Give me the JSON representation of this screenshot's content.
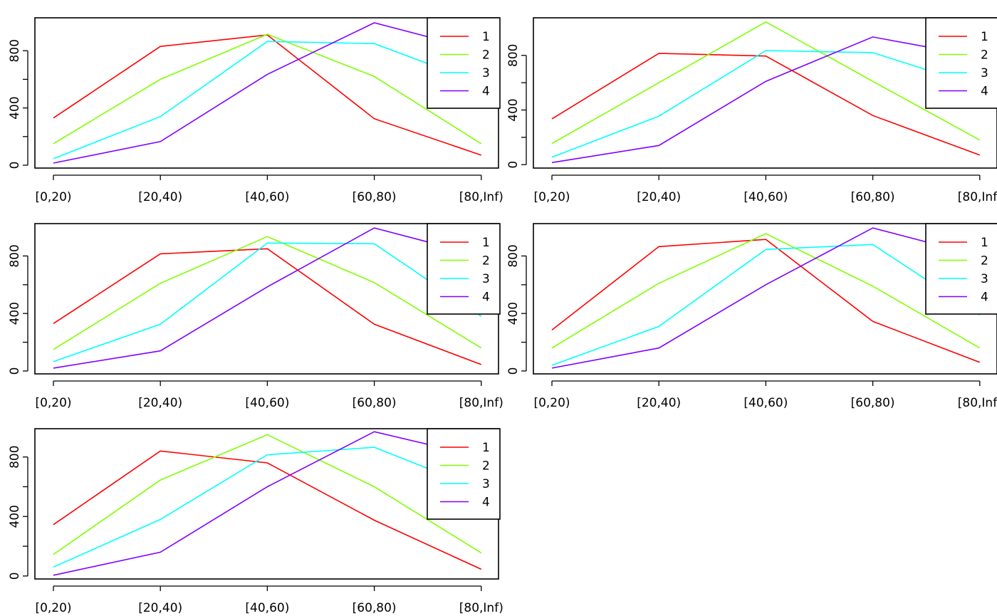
{
  "chart_data": [
    {
      "type": "line",
      "categories": [
        "[0,20)",
        "[20,40)",
        "[40,60)",
        "[60,80)",
        "[80,Inf)"
      ],
      "yticks": [
        0,
        400,
        800
      ],
      "ylim": [
        -20,
        1030
      ],
      "legend_position": "top-right",
      "series": [
        {
          "name": "1",
          "color": "#FF0000",
          "values": [
            330,
            830,
            910,
            325,
            70
          ]
        },
        {
          "name": "2",
          "color": "#80FF00",
          "values": [
            150,
            600,
            915,
            620,
            150
          ]
        },
        {
          "name": "3",
          "color": "#00FFFF",
          "values": [
            45,
            340,
            865,
            850,
            570
          ]
        },
        {
          "name": "4",
          "color": "#8000FF",
          "values": [
            15,
            165,
            635,
            995,
            800
          ]
        }
      ]
    },
    {
      "type": "line",
      "categories": [
        "[0,20)",
        "[20,40)",
        "[40,60)",
        "[60,80)",
        "[80,Inf)"
      ],
      "yticks": [
        0,
        400,
        800
      ],
      "ylim": [
        -25,
        1075
      ],
      "legend_position": "top-right",
      "series": [
        {
          "name": "1",
          "color": "#FF0000",
          "values": [
            335,
            815,
            795,
            360,
            70
          ]
        },
        {
          "name": "2",
          "color": "#80FF00",
          "values": [
            155,
            600,
            1045,
            610,
            180
          ]
        },
        {
          "name": "3",
          "color": "#00FFFF",
          "values": [
            55,
            355,
            835,
            820,
            570
          ]
        },
        {
          "name": "4",
          "color": "#8000FF",
          "values": [
            15,
            140,
            610,
            935,
            790
          ]
        }
      ]
    },
    {
      "type": "line",
      "categories": [
        "[0,20)",
        "[20,40)",
        "[40,60)",
        "[60,80)",
        "[80,Inf)"
      ],
      "yticks": [
        0,
        400,
        800
      ],
      "ylim": [
        -20,
        1025
      ],
      "legend_position": "top-right",
      "series": [
        {
          "name": "1",
          "color": "#FF0000",
          "values": [
            330,
            815,
            850,
            325,
            45
          ]
        },
        {
          "name": "2",
          "color": "#80FF00",
          "values": [
            150,
            610,
            935,
            615,
            160
          ]
        },
        {
          "name": "3",
          "color": "#00FFFF",
          "values": [
            65,
            325,
            890,
            885,
            380
          ]
        },
        {
          "name": "4",
          "color": "#8000FF",
          "values": [
            20,
            140,
            585,
            995,
            800
          ]
        }
      ]
    },
    {
      "type": "line",
      "categories": [
        "[0,20)",
        "[20,40)",
        "[40,60)",
        "[60,80)",
        "[80,Inf)"
      ],
      "yticks": [
        0,
        400,
        800
      ],
      "ylim": [
        -20,
        1025
      ],
      "legend_position": "top-right",
      "series": [
        {
          "name": "1",
          "color": "#FF0000",
          "values": [
            285,
            865,
            915,
            345,
            60
          ]
        },
        {
          "name": "2",
          "color": "#80FF00",
          "values": [
            160,
            610,
            955,
            590,
            160
          ]
        },
        {
          "name": "3",
          "color": "#00FFFF",
          "values": [
            40,
            310,
            845,
            880,
            390
          ]
        },
        {
          "name": "4",
          "color": "#8000FF",
          "values": [
            20,
            160,
            600,
            995,
            800
          ]
        }
      ]
    },
    {
      "type": "line",
      "categories": [
        "[0,20)",
        "[20,40)",
        "[40,60)",
        "[60,80)",
        "[80,Inf)"
      ],
      "yticks": [
        0,
        400,
        800
      ],
      "ylim": [
        -20,
        990
      ],
      "legend_position": "top-right",
      "series": [
        {
          "name": "1",
          "color": "#FF0000",
          "values": [
            345,
            840,
            760,
            375,
            45
          ]
        },
        {
          "name": "2",
          "color": "#80FF00",
          "values": [
            145,
            645,
            950,
            600,
            155
          ]
        },
        {
          "name": "3",
          "color": "#00FFFF",
          "values": [
            60,
            380,
            815,
            865,
            580
          ]
        },
        {
          "name": "4",
          "color": "#8000FF",
          "values": [
            5,
            160,
            600,
            970,
            800
          ]
        }
      ]
    }
  ]
}
